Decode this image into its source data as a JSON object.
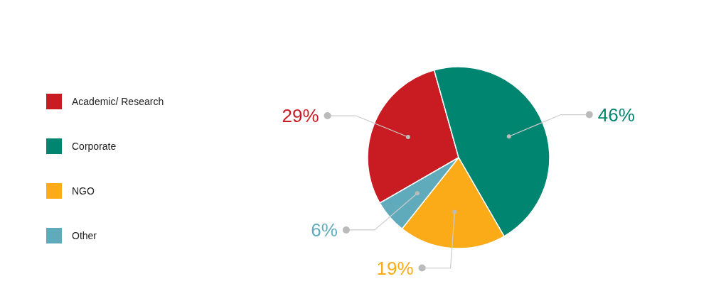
{
  "chart_data": {
    "type": "pie",
    "categories": [
      "Academic/ Research",
      "Corporate",
      "NGO",
      "Other"
    ],
    "values": [
      29,
      46,
      19,
      6
    ],
    "colors": [
      "#c81b22",
      "#008570",
      "#fbab18",
      "#5fabbb"
    ],
    "value_labels": [
      "29%",
      "46%",
      "19%",
      "6%"
    ],
    "legend": "left"
  }
}
